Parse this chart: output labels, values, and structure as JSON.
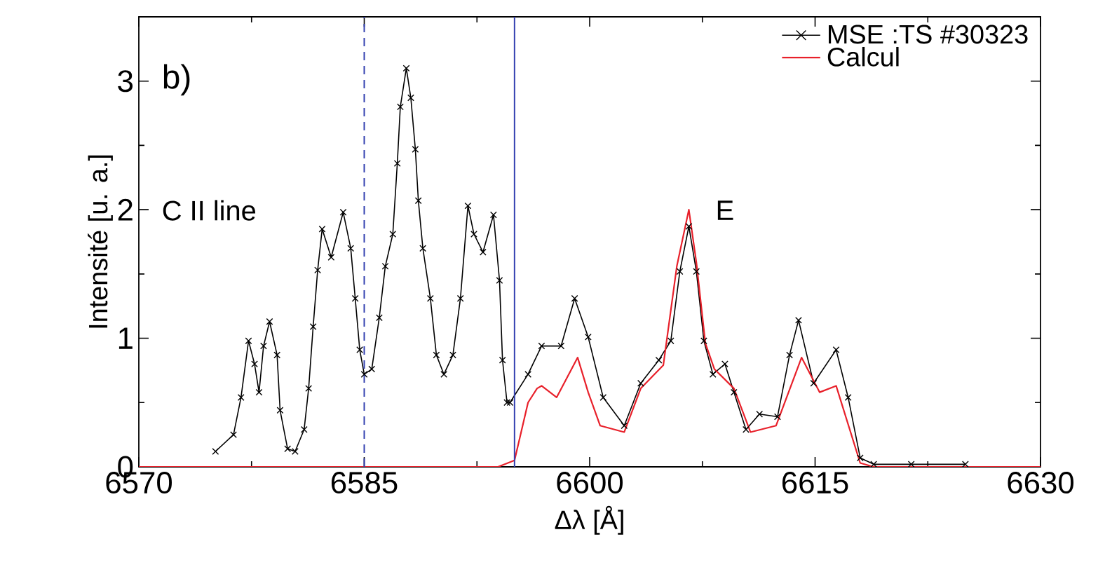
{
  "chart_data": {
    "type": "line",
    "xlabel": "Δλ [Å]",
    "ylabel": "Intensité [u. a.]",
    "annotations": [
      "b)",
      "C II line",
      "E"
    ],
    "xlim": [
      6570,
      6630
    ],
    "xticks": [
      6570,
      6585,
      6600,
      6615,
      6630
    ],
    "ylim": [
      0,
      3.5
    ],
    "yticks": [
      0,
      1,
      2,
      3
    ],
    "legend": "top right",
    "grid": false,
    "ref_lines": [
      {
        "axis": "x",
        "value": 6585,
        "color": "#3340b0",
        "line_style": "dashed"
      },
      {
        "axis": "x",
        "value": 6595,
        "color": "#3340b0",
        "line_style": "solid"
      }
    ],
    "series": [
      {
        "name": "MSE :TS #30323",
        "color": "#000000",
        "marker": "cross",
        "line_style": "solid",
        "x": [
          6575.1,
          6576.3,
          6576.8,
          6577.3,
          6577.7,
          6578.0,
          6578.3,
          6578.7,
          6579.2,
          6579.4,
          6579.9,
          6580.4,
          6581.0,
          6581.3,
          6581.6,
          6581.9,
          6582.2,
          6582.8,
          6583.6,
          6584.1,
          6584.4,
          6584.7,
          6585.0,
          6585.5,
          6586.0,
          6586.4,
          6586.9,
          6587.2,
          6587.4,
          6587.8,
          6588.1,
          6588.4,
          6588.6,
          6588.9,
          6589.4,
          6589.8,
          6590.3,
          6590.9,
          6591.4,
          6591.9,
          6592.3,
          6592.9,
          6593.6,
          6594.0,
          6594.2,
          6594.5,
          6594.7,
          6595.9,
          6596.8,
          6598.1,
          6599.0,
          6599.9,
          6600.9,
          6602.3,
          6603.4,
          6604.6,
          6605.4,
          6606.0,
          6606.6,
          6607.1,
          6607.6,
          6608.2,
          6609.0,
          6609.6,
          6610.4,
          6611.3,
          6612.5,
          6613.3,
          6613.9,
          6614.9,
          6616.4,
          6617.2,
          6618.0,
          6618.9,
          6621.4,
          6625.0
        ],
        "values": [
          0.12,
          0.25,
          0.54,
          0.98,
          0.8,
          0.58,
          0.94,
          1.13,
          0.87,
          0.44,
          0.14,
          0.12,
          0.29,
          0.61,
          1.09,
          1.53,
          1.85,
          1.63,
          1.98,
          1.7,
          1.31,
          0.91,
          0.72,
          0.76,
          1.16,
          1.56,
          1.81,
          2.36,
          2.8,
          3.1,
          2.87,
          2.47,
          2.07,
          1.7,
          1.31,
          0.87,
          0.72,
          0.87,
          1.31,
          2.03,
          1.81,
          1.67,
          1.96,
          1.45,
          0.83,
          0.5,
          0.5,
          0.72,
          0.94,
          0.94,
          1.31,
          1.01,
          0.54,
          0.32,
          0.65,
          0.83,
          0.98,
          1.52,
          1.87,
          1.52,
          0.98,
          0.72,
          0.8,
          0.58,
          0.29,
          0.41,
          0.39,
          0.87,
          1.14,
          0.65,
          0.91,
          0.54,
          0.07,
          0.02,
          0.02,
          0.02
        ]
      },
      {
        "name": "Calcul",
        "color": "#e8202a",
        "line_style": "solid",
        "x": [
          6570,
          6593.9,
          6595.0,
          6595.9,
          6596.5,
          6596.8,
          6597.8,
          6599.2,
          6599.9,
          6600.7,
          6602.3,
          6603.4,
          6604.9,
          6605.8,
          6606.6,
          6607.1,
          6607.7,
          6608.3,
          6609.6,
          6610.7,
          6612.4,
          6614.1,
          6615.3,
          6616.4,
          6618.0,
          6618.9,
          6630
        ],
        "values": [
          0,
          0,
          0.05,
          0.5,
          0.61,
          0.63,
          0.54,
          0.85,
          0.58,
          0.32,
          0.27,
          0.61,
          0.79,
          1.56,
          2.0,
          1.59,
          0.96,
          0.76,
          0.61,
          0.27,
          0.32,
          0.85,
          0.58,
          0.63,
          0.03,
          0,
          0
        ]
      }
    ]
  }
}
